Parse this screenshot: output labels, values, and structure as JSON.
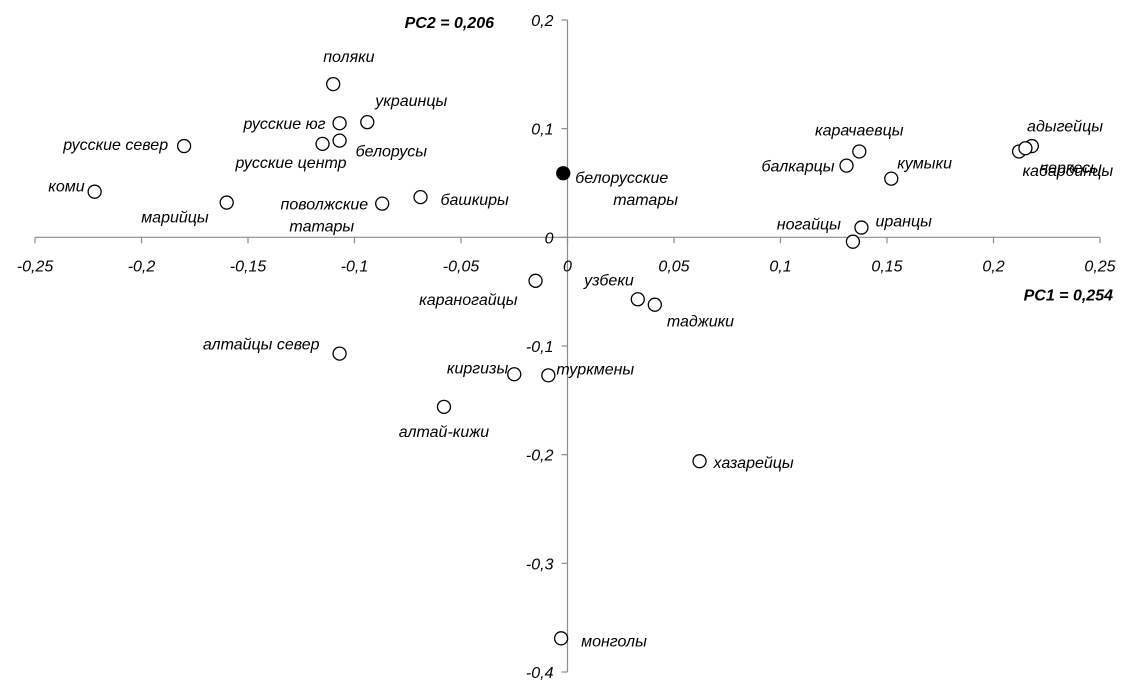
{
  "chart_data": {
    "type": "scatter",
    "title": "",
    "xlabel": "PC1 = 0,254",
    "ylabel": "PC2 = 0,206",
    "xlim": [
      -0.25,
      0.25
    ],
    "ylim": [
      -0.4,
      0.2
    ],
    "x_ticks": [
      -0.25,
      -0.2,
      -0.15,
      -0.1,
      -0.05,
      0,
      0.05,
      0.1,
      0.15,
      0.2,
      0.25
    ],
    "x_tick_labels": [
      "-0,25",
      "-0,2",
      "-0,15",
      "-0,1",
      "-0,05",
      "0",
      "0,05",
      "0,1",
      "0,15",
      "0,2",
      "0,25"
    ],
    "y_ticks": [
      0.2,
      0.1,
      0,
      -0.1,
      -0.2,
      -0.3,
      -0.4
    ],
    "y_tick_labels": [
      "0,2",
      "0,1",
      "0",
      "-0,1",
      "-0,2",
      "-0,3",
      "-0,4"
    ],
    "grid": false,
    "legend": "none",
    "colors": {
      "axis": "#8c8c8c",
      "marker_stroke": "#000000",
      "marker_fill_open": "#ffffff",
      "marker_fill_highlight": "#000000"
    },
    "points": [
      {
        "label": "поляки",
        "x": -0.11,
        "y": 0.141
      },
      {
        "label": "украинцы",
        "x": -0.094,
        "y": 0.106
      },
      {
        "label": "русские юг",
        "x": -0.107,
        "y": 0.105
      },
      {
        "label": "русские север",
        "x": -0.18,
        "y": 0.084
      },
      {
        "label": "русские центр",
        "x": -0.115,
        "y": 0.086
      },
      {
        "label": "белорусы",
        "x": -0.107,
        "y": 0.089
      },
      {
        "label": "коми",
        "x": -0.222,
        "y": 0.042
      },
      {
        "label": "марийцы",
        "x": -0.16,
        "y": 0.032
      },
      {
        "label": "поволжские татары",
        "x": -0.087,
        "y": 0.031
      },
      {
        "label": "башкиры",
        "x": -0.069,
        "y": 0.037
      },
      {
        "label": "белорусские татары",
        "x": -0.002,
        "y": 0.059,
        "highlight": true
      },
      {
        "label": "караногайцы",
        "x": -0.015,
        "y": -0.04
      },
      {
        "label": "узбеки",
        "x": 0.033,
        "y": -0.057
      },
      {
        "label": "таджики",
        "x": 0.041,
        "y": -0.062
      },
      {
        "label": "алтайцы север",
        "x": -0.107,
        "y": -0.107
      },
      {
        "label": "киргизы",
        "x": -0.025,
        "y": -0.126
      },
      {
        "label": "туркмены",
        "x": -0.009,
        "y": -0.127
      },
      {
        "label": "алтай-кижи",
        "x": -0.058,
        "y": -0.156
      },
      {
        "label": "хазарейцы",
        "x": 0.062,
        "y": -0.206
      },
      {
        "label": "монголы",
        "x": -0.003,
        "y": -0.369
      },
      {
        "label": "карачаевцы",
        "x": 0.137,
        "y": 0.079
      },
      {
        "label": "балкарцы",
        "x": 0.131,
        "y": 0.066
      },
      {
        "label": "кумыки",
        "x": 0.152,
        "y": 0.054
      },
      {
        "label": "ногайцы",
        "x": 0.134,
        "y": -0.004
      },
      {
        "label": "иранцы",
        "x": 0.138,
        "y": 0.009
      },
      {
        "label": "адыгейцы",
        "x": 0.212,
        "y": 0.079
      },
      {
        "label": "черкесы",
        "x": 0.218,
        "y": 0.084
      },
      {
        "label": "кабардинцы",
        "x": 0.215,
        "y": 0.082
      }
    ]
  }
}
